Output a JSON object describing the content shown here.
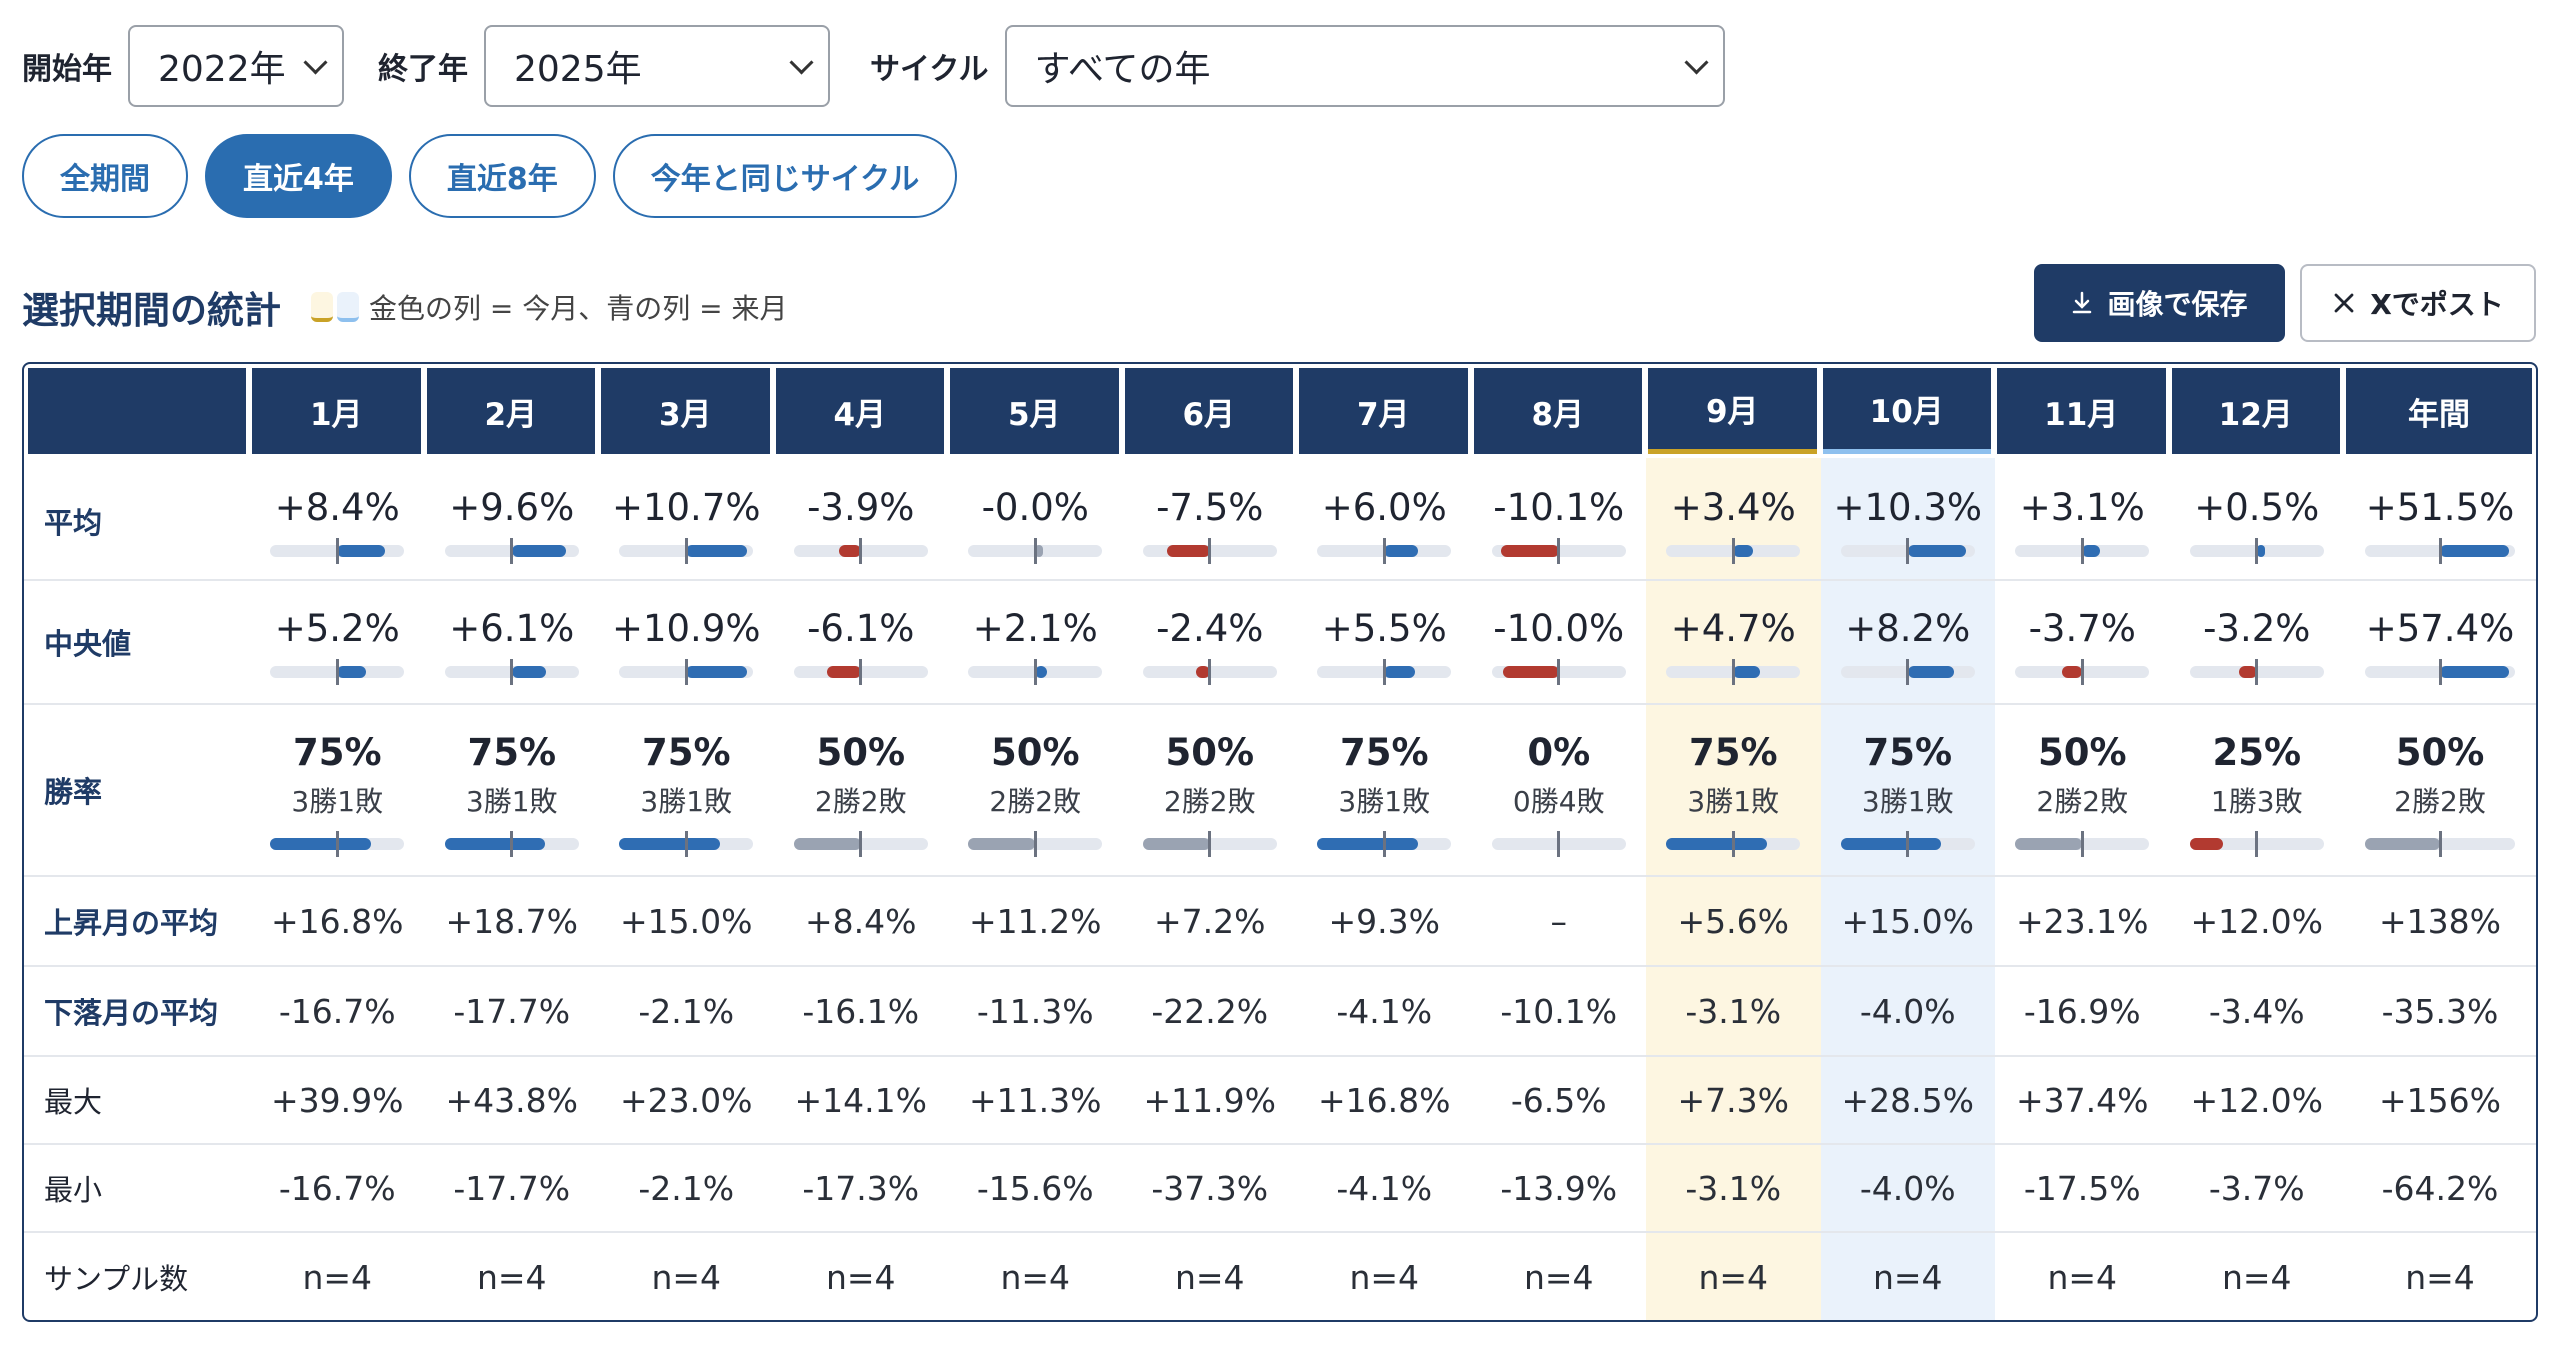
{
  "controls": {
    "start_label": "開始年",
    "start_value": "2022年",
    "end_label": "終了年",
    "end_value": "2025年",
    "cycle_label": "サイクル",
    "cycle_value": "すべての年"
  },
  "presets": [
    "全期間",
    "直近4年",
    "直近8年",
    "今年と同じサイクル"
  ],
  "active_preset": 1,
  "section": {
    "title": "選択期間の統計",
    "legend": "金色の列 = 今月、青の列 = 来月",
    "save_label": "画像で保存",
    "post_label": "Xでポスト"
  },
  "colors": {
    "navy": "#1f3b66",
    "accent_blue": "#2a6db0",
    "positive": "#2f6db3",
    "negative": "#b23a30",
    "neutral": "#9aa3b2",
    "gold_bg": "#fdf6e1",
    "gold_line": "#c9a227",
    "blue_bg": "#eaf2fb",
    "blue_line": "#8ec0ee"
  },
  "table": {
    "columns": [
      "1月",
      "2月",
      "3月",
      "4月",
      "5月",
      "6月",
      "7月",
      "8月",
      "9月",
      "10月",
      "11月",
      "12月",
      "年間"
    ],
    "current_col": 8,
    "next_col": 9,
    "rows": {
      "avg": {
        "label": "平均",
        "display": [
          "+8.4%",
          "+9.6%",
          "+10.7%",
          "-3.9%",
          "-0.0%",
          "-7.5%",
          "+6.0%",
          "-10.1%",
          "+3.4%",
          "+10.3%",
          "+3.1%",
          "+0.5%",
          "+51.5%"
        ],
        "values": [
          8.4,
          9.6,
          10.7,
          -3.9,
          0.0,
          -7.5,
          6.0,
          -10.1,
          3.4,
          10.3,
          3.1,
          0.5,
          51.5
        ]
      },
      "median": {
        "label": "中央値",
        "display": [
          "+5.2%",
          "+6.1%",
          "+10.9%",
          "-6.1%",
          "+2.1%",
          "-2.4%",
          "+5.5%",
          "-10.0%",
          "+4.7%",
          "+8.2%",
          "-3.7%",
          "-3.2%",
          "+57.4%"
        ],
        "values": [
          5.2,
          6.1,
          10.9,
          -6.1,
          2.1,
          -2.4,
          5.5,
          -10.0,
          4.7,
          8.2,
          -3.7,
          -3.2,
          57.4
        ]
      },
      "winrate": {
        "label": "勝率",
        "display": [
          "75%",
          "75%",
          "75%",
          "50%",
          "50%",
          "50%",
          "75%",
          "0%",
          "75%",
          "75%",
          "50%",
          "25%",
          "50%"
        ],
        "record": [
          "3勝1敗",
          "3勝1敗",
          "3勝1敗",
          "2勝2敗",
          "2勝2敗",
          "2勝2敗",
          "3勝1敗",
          "0勝4敗",
          "3勝1敗",
          "3勝1敗",
          "2勝2敗",
          "1勝3敗",
          "2勝2敗"
        ],
        "values": [
          0.75,
          0.75,
          0.75,
          0.5,
          0.5,
          0.5,
          0.75,
          0.0,
          0.75,
          0.75,
          0.5,
          0.25,
          0.5
        ]
      },
      "up_avg": {
        "label": "上昇月の平均",
        "display": [
          "+16.8%",
          "+18.7%",
          "+15.0%",
          "+8.4%",
          "+11.2%",
          "+7.2%",
          "+9.3%",
          "–",
          "+5.6%",
          "+15.0%",
          "+23.1%",
          "+12.0%",
          "+138%"
        ]
      },
      "down_avg": {
        "label": "下落月の平均",
        "display": [
          "-16.7%",
          "-17.7%",
          "-2.1%",
          "-16.1%",
          "-11.3%",
          "-22.2%",
          "-4.1%",
          "-10.1%",
          "-3.1%",
          "-4.0%",
          "-16.9%",
          "-3.4%",
          "-35.3%"
        ]
      },
      "max": {
        "label": "最大",
        "display": [
          "+39.9%",
          "+43.8%",
          "+23.0%",
          "+14.1%",
          "+11.3%",
          "+11.9%",
          "+16.8%",
          "-6.5%",
          "+7.3%",
          "+28.5%",
          "+37.4%",
          "+12.0%",
          "+156%"
        ]
      },
      "min": {
        "label": "最小",
        "display": [
          "-16.7%",
          "-17.7%",
          "-2.1%",
          "-17.3%",
          "-15.6%",
          "-37.3%",
          "-4.1%",
          "-13.9%",
          "-3.1%",
          "-4.0%",
          "-17.5%",
          "-3.7%",
          "-64.2%"
        ]
      },
      "n": {
        "label": "サンプル数",
        "display": [
          "n=4",
          "n=4",
          "n=4",
          "n=4",
          "n=4",
          "n=4",
          "n=4",
          "n=4",
          "n=4",
          "n=4",
          "n=4",
          "n=4",
          "n=4"
        ]
      }
    }
  }
}
